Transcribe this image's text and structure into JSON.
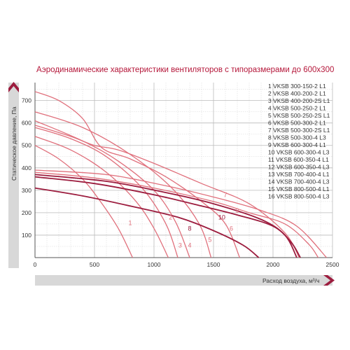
{
  "chart_data": {
    "type": "line",
    "title": "Аэродинамические характеристики вентиляторов с типоразмерами до 600х300",
    "xlabel": "Расход воздуха, м³/ч",
    "ylabel": "Статическое давление, Па",
    "xlim": [
      0,
      2500
    ],
    "ylim": [
      0,
      780
    ],
    "xticks": [
      "0",
      "500",
      "1000",
      "1500",
      "2000",
      "2500"
    ],
    "yticks": [
      "100",
      "200",
      "300",
      "400",
      "500",
      "600",
      "700"
    ],
    "grid": true,
    "legend_position": "top-right",
    "colors": {
      "light": "#e0707c",
      "dark": "#9c1c3e",
      "title": "#b5173a",
      "grid": "#cccccc",
      "axis_bar": "#d8d8d8"
    },
    "legend": [
      "1 VKSB 300-150-2 L1",
      "2 VKSB 400-200-2 L1",
      "3 VKSB 400-200-2S L1",
      "4 VKSB 500-250-2 L1",
      "5 VKSB 500-250-2S L1",
      "6 VKSB 500-300-2 L1",
      "7 VKSB 500-300-2S L1",
      "8 VKSB 500-300-4 L3",
      "9 VKSB 600-300-4 L1",
      "10 VKSB 600-300-4 L3",
      "11 VKSB 600-350-4 L1",
      "12 VKSB 600-350-4 L3",
      "13 VKSB 700-400-4 L1",
      "14 VKSB 700-400-4 L3",
      "15 VKSB 800-500-4 L1",
      "16 VKSB 800-500-4 L3"
    ],
    "series": [
      {
        "name": "1",
        "label": "1",
        "style": "light",
        "points": [
          [
            0,
            500
          ],
          [
            200,
            440
          ],
          [
            400,
            350
          ],
          [
            550,
            250
          ],
          [
            700,
            130
          ],
          [
            820,
            0
          ]
        ]
      },
      {
        "name": "2",
        "label": "2",
        "style": "light",
        "points": [
          [
            0,
            540
          ],
          [
            300,
            480
          ],
          [
            600,
            380
          ],
          [
            850,
            250
          ],
          [
            1000,
            130
          ],
          [
            1120,
            0
          ]
        ]
      },
      {
        "name": "3",
        "label": "3",
        "style": "light",
        "points": [
          [
            0,
            580
          ],
          [
            300,
            530
          ],
          [
            600,
            450
          ],
          [
            900,
            310
          ],
          [
            1100,
            150
          ],
          [
            1200,
            0
          ]
        ]
      },
      {
        "name": "4",
        "label": "4",
        "style": "light",
        "points": [
          [
            0,
            610
          ],
          [
            400,
            520
          ],
          [
            700,
            430
          ],
          [
            1000,
            300
          ],
          [
            1180,
            160
          ],
          [
            1300,
            0
          ]
        ]
      },
      {
        "name": "5",
        "label": "5",
        "style": "light",
        "points": [
          [
            0,
            650
          ],
          [
            400,
            580
          ],
          [
            800,
            460
          ],
          [
            1150,
            310
          ],
          [
            1380,
            150
          ],
          [
            1480,
            0
          ]
        ]
      },
      {
        "name": "6",
        "label": "6",
        "style": "light",
        "points": [
          [
            0,
            740
          ],
          [
            200,
            700
          ],
          [
            400,
            620
          ],
          [
            560,
            490
          ],
          [
            800,
            440
          ],
          [
            1100,
            360
          ],
          [
            1400,
            250
          ],
          [
            1600,
            150
          ],
          [
            1720,
            0
          ]
        ]
      },
      {
        "name": "7",
        "label": "7",
        "style": "light",
        "points": [
          [
            0,
            590
          ],
          [
            300,
            540
          ],
          [
            500,
            500
          ],
          [
            700,
            480
          ],
          [
            1000,
            420
          ],
          [
            1400,
            330
          ],
          [
            1800,
            240
          ],
          [
            2100,
            110
          ],
          [
            2220,
            0
          ]
        ]
      },
      {
        "name": "8",
        "label": "8",
        "style": "dark",
        "points": [
          [
            0,
            310
          ],
          [
            400,
            275
          ],
          [
            800,
            230
          ],
          [
            1200,
            180
          ],
          [
            1500,
            120
          ],
          [
            1750,
            55
          ],
          [
            1880,
            0
          ]
        ]
      },
      {
        "name": "9",
        "label": "9",
        "style": "light",
        "points": [
          [
            0,
            380
          ],
          [
            500,
            355
          ],
          [
            1000,
            310
          ],
          [
            1500,
            250
          ],
          [
            1800,
            200
          ],
          [
            2100,
            150
          ],
          [
            2300,
            60
          ],
          [
            2380,
            0
          ]
        ]
      },
      {
        "name": "10",
        "label": "10",
        "style": "dark",
        "points": [
          [
            0,
            360
          ],
          [
            500,
            330
          ],
          [
            1000,
            280
          ],
          [
            1400,
            230
          ],
          [
            1700,
            190
          ],
          [
            2000,
            140
          ],
          [
            2150,
            70
          ],
          [
            2230,
            0
          ]
        ]
      },
      {
        "name": "11",
        "label": "",
        "style": "light",
        "points": [
          [
            0,
            390
          ],
          [
            600,
            370
          ],
          [
            1100,
            320
          ],
          [
            1500,
            270
          ],
          [
            1900,
            210
          ],
          [
            2200,
            140
          ],
          [
            2450,
            0
          ]
        ]
      },
      {
        "name": "12",
        "label": "",
        "style": "dark",
        "points": [
          [
            0,
            370
          ],
          [
            600,
            340
          ],
          [
            1100,
            290
          ],
          [
            1500,
            240
          ],
          [
            1900,
            170
          ],
          [
            2100,
            100
          ],
          [
            2200,
            0
          ]
        ]
      }
    ]
  }
}
